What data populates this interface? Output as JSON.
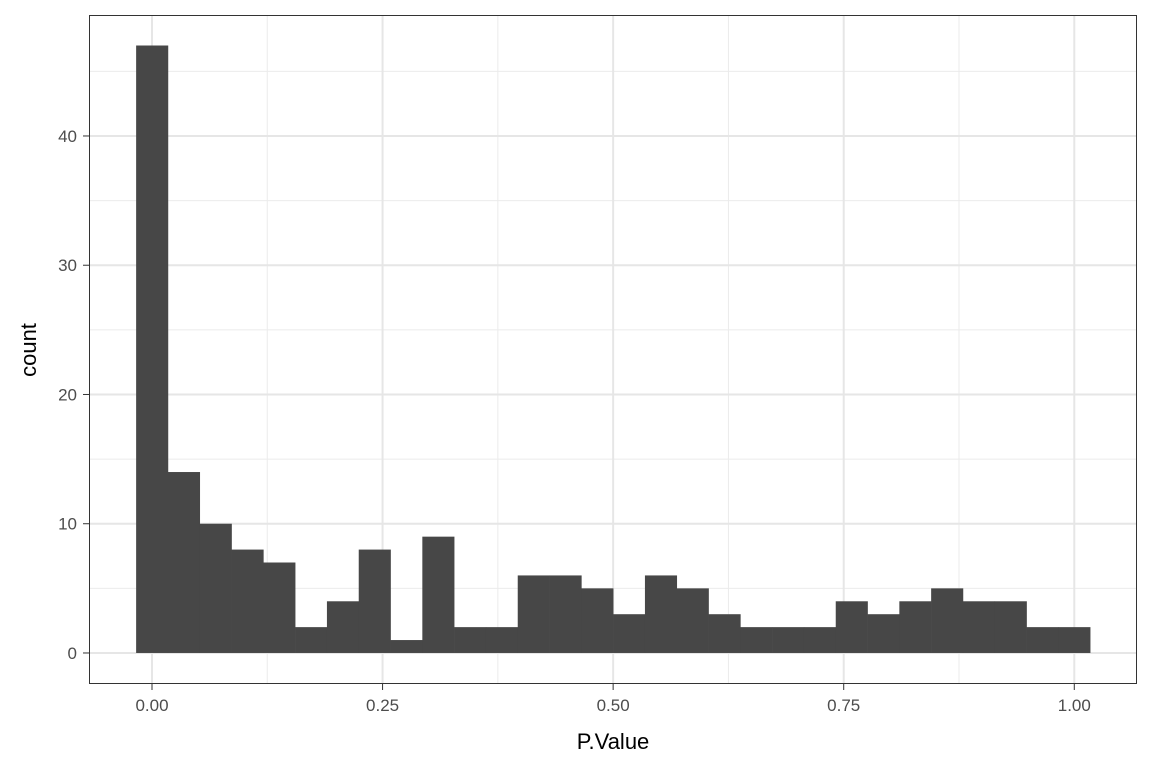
{
  "chart_data": {
    "type": "bar",
    "title": "",
    "xlabel": "P.Value",
    "ylabel": "count",
    "bin_start": -0.0172,
    "bin_width": 0.03448,
    "values": [
      47,
      14,
      10,
      8,
      7,
      2,
      4,
      8,
      1,
      9,
      2,
      2,
      6,
      6,
      5,
      3,
      6,
      5,
      3,
      2,
      2,
      2,
      4,
      3,
      4,
      5,
      4,
      4,
      2,
      2
    ],
    "xlim": [
      -0.0683,
      1.068
    ],
    "ylim": [
      -2.4,
      49.36
    ],
    "x_ticks": [
      0,
      0.25,
      0.5,
      0.75,
      1.0
    ],
    "x_tick_labels": [
      "0.00",
      "0.25",
      "0.50",
      "0.75",
      "1.00"
    ],
    "y_ticks": [
      0,
      10,
      20,
      30,
      40
    ],
    "y_tick_labels": [
      "0",
      "10",
      "20",
      "30",
      "40"
    ],
    "grid": true,
    "bar_color": "#474747"
  }
}
